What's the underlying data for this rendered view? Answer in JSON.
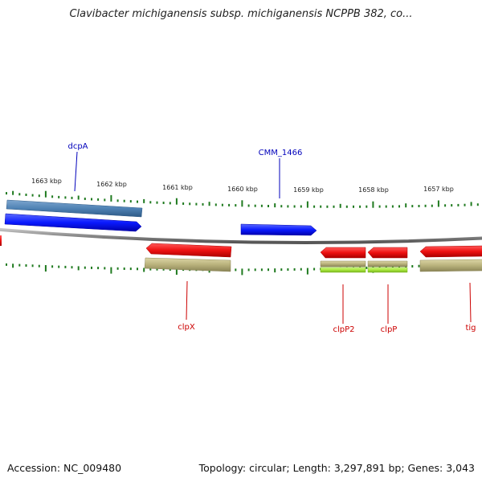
{
  "title": "Clavibacter michiganensis subsp. michiganensis NCPPB 382, co...",
  "footer": {
    "accession": "Accession: NC_009480",
    "summary": "Topology: circular; Length: 3,297,891 bp; Genes: 3,043"
  },
  "colors": {
    "backbone": "#8a8a8a",
    "tick": "#1f7a1f",
    "forward_cds": "#0a1aff",
    "forward_other": "#4f82b4",
    "reverse_cds": "#ee1111",
    "reverse_other": "#b9b27c",
    "reverse_light": "#a6e63c",
    "label_forward": "#0000bb",
    "label_reverse": "#cc0000"
  },
  "ruler": {
    "labels": [
      "1663 kbp",
      "1662 kbp",
      "1661 kbp",
      "1660 kbp",
      "1659 kbp",
      "1658 kbp",
      "1657 kbp"
    ]
  },
  "gene_labels": {
    "forward": [
      "dcpA",
      "CMM_1466"
    ],
    "reverse": [
      "clpX",
      "clpP2",
      "clpP",
      "tig"
    ]
  }
}
